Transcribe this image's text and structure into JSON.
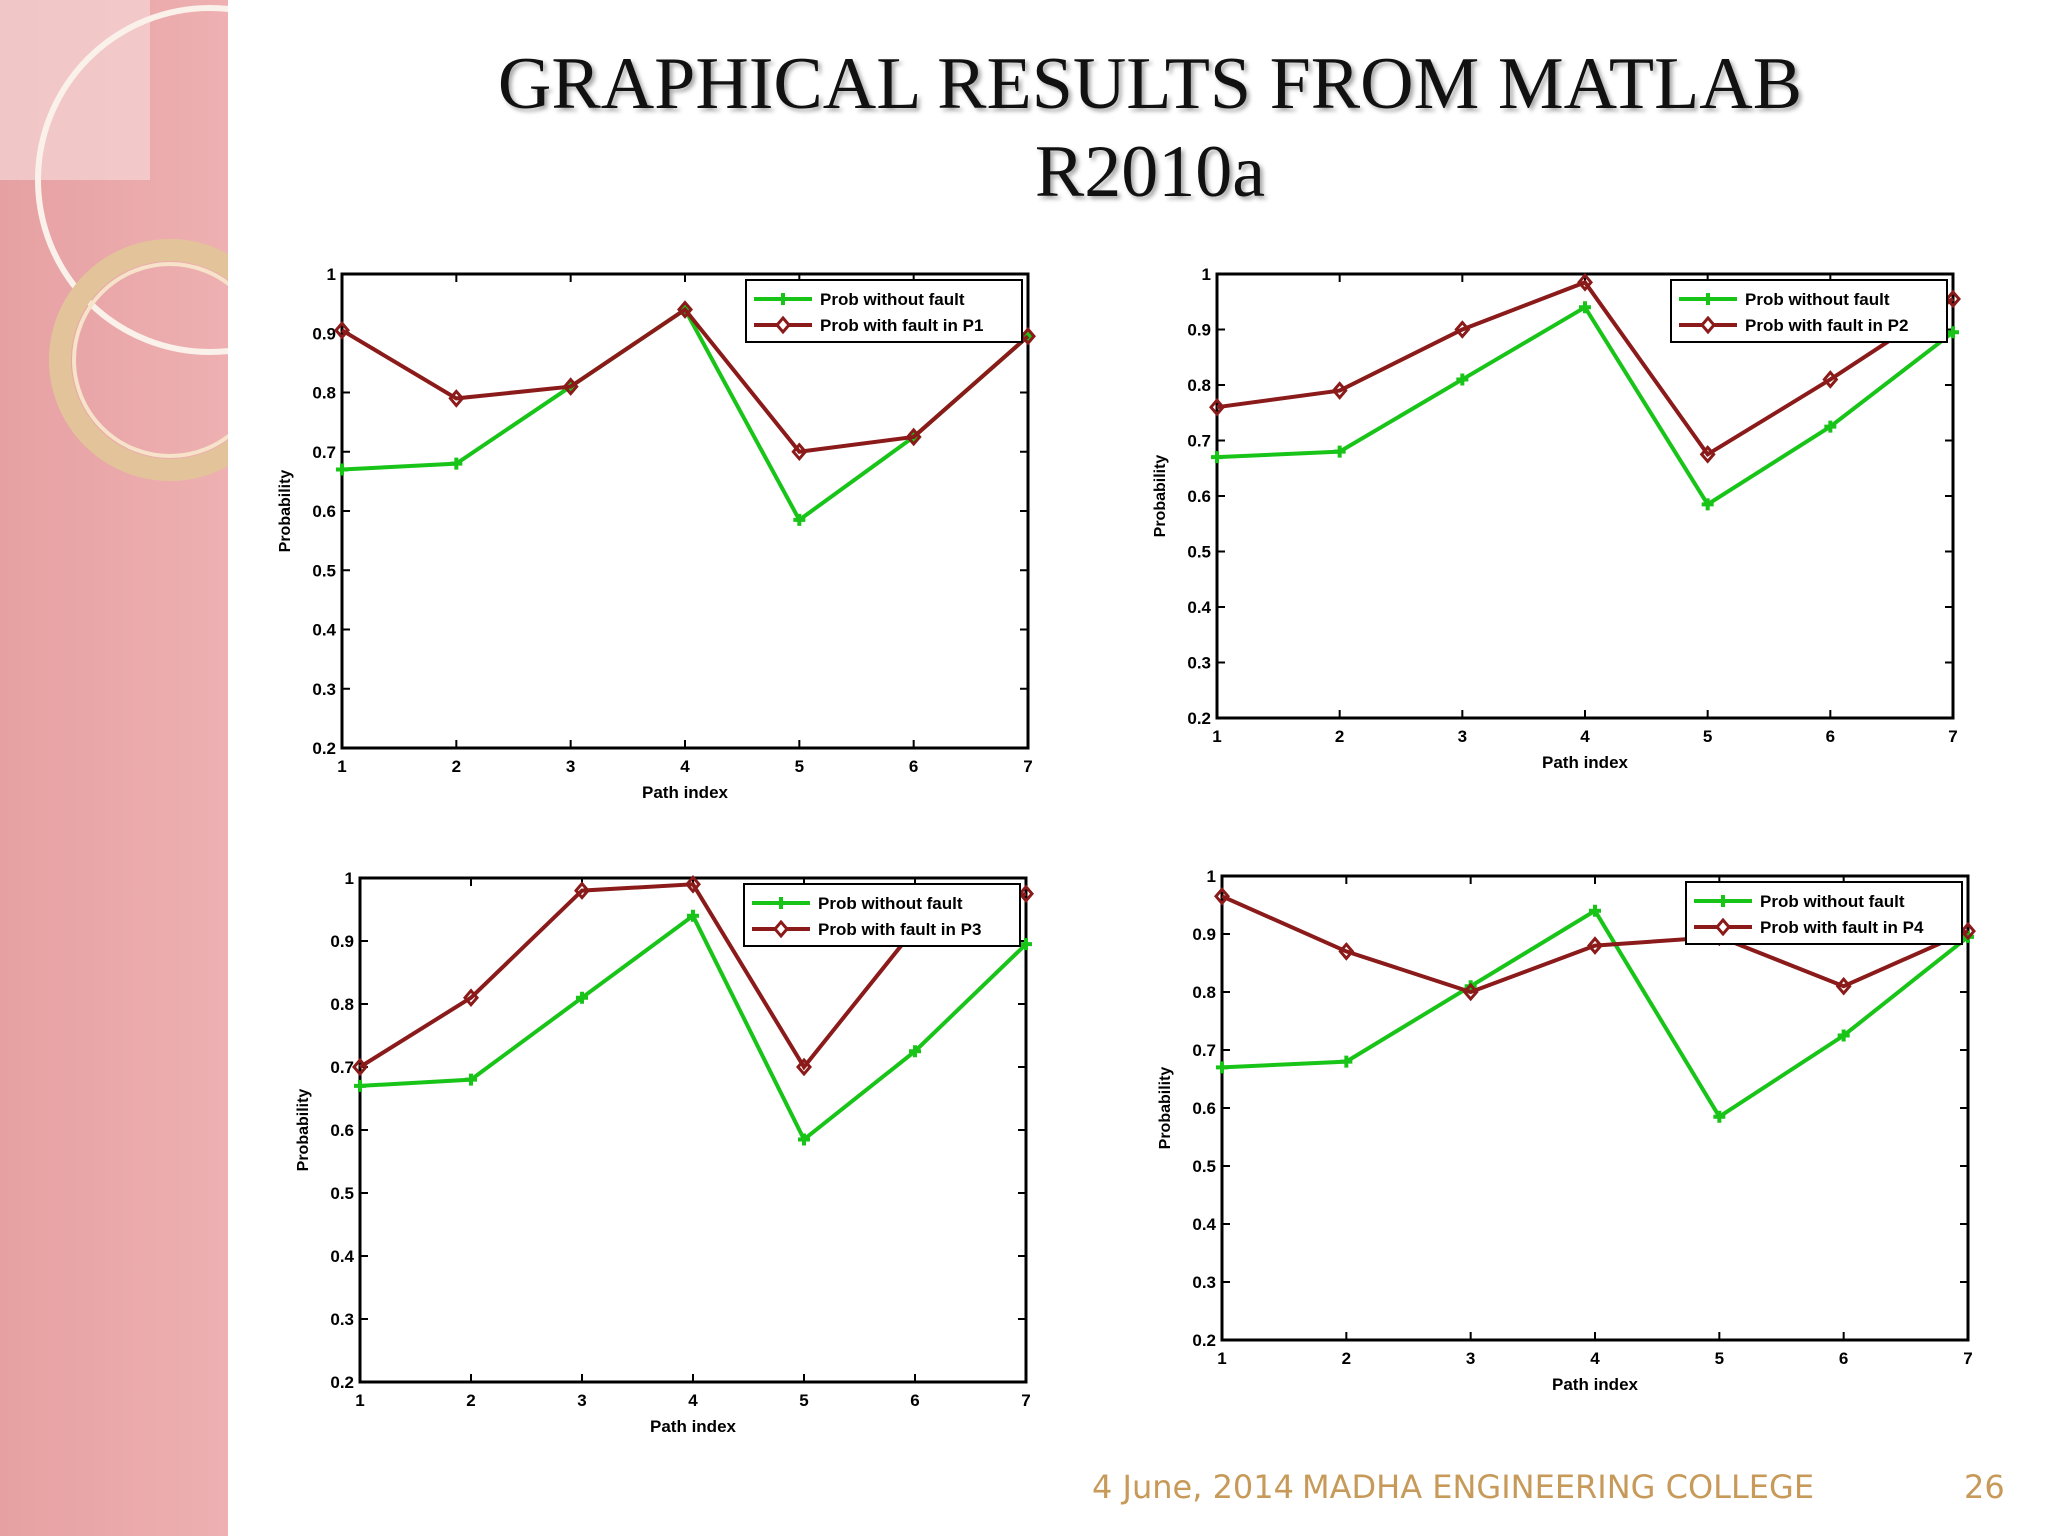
{
  "slide": {
    "title_line1": "GRAPHICAL RESULTS FROM MATLAB",
    "title_line2": "R2010a",
    "footer": {
      "date": "4 June, 2014",
      "institution": "MADHA ENGINEERING COLLEGE",
      "page_number": "26"
    }
  },
  "colors": {
    "sidebar": "#e8a6a8",
    "series_without_fault": "#19c419",
    "series_with_fault": "#8b1a1a",
    "footer_text": "#c79a5a",
    "ring": "#e8c9a0"
  },
  "chart_data": [
    {
      "type": "line",
      "x": [
        1,
        2,
        3,
        4,
        5,
        6,
        7
      ],
      "xlim": [
        1,
        7
      ],
      "ylim": [
        0.2,
        1
      ],
      "xticks": [
        "1",
        "2",
        "3",
        "4",
        "5",
        "6",
        "7"
      ],
      "yticks": [
        "0.2",
        "0.3",
        "0.4",
        "0.5",
        "0.6",
        "0.7",
        "0.8",
        "0.9",
        "1"
      ],
      "xlabel": "Path index",
      "ylabel": "Probability",
      "legend_position": "top-right",
      "series": [
        {
          "name": "Prob without fault",
          "values": [
            0.67,
            0.68,
            0.81,
            0.94,
            0.585,
            0.725,
            0.895
          ]
        },
        {
          "name": "Prob with fault in P1",
          "values": [
            0.905,
            0.79,
            0.81,
            0.94,
            0.7,
            0.725,
            0.895
          ]
        }
      ]
    },
    {
      "type": "line",
      "x": [
        1,
        2,
        3,
        4,
        5,
        6,
        7
      ],
      "xlim": [
        1,
        7
      ],
      "ylim": [
        0.2,
        1
      ],
      "xticks": [
        "1",
        "2",
        "3",
        "4",
        "5",
        "6",
        "7"
      ],
      "yticks": [
        "0.2",
        "0.3",
        "0.4",
        "0.5",
        "0.6",
        "0.7",
        "0.8",
        "0.9",
        "1"
      ],
      "xlabel": "Path index",
      "ylabel": "Probability",
      "legend_position": "top-right",
      "series": [
        {
          "name": "Prob without fault",
          "values": [
            0.67,
            0.68,
            0.81,
            0.94,
            0.585,
            0.725,
            0.895
          ]
        },
        {
          "name": "Prob with fault in P2",
          "values": [
            0.76,
            0.79,
            0.9,
            0.985,
            0.675,
            0.81,
            0.955
          ]
        }
      ]
    },
    {
      "type": "line",
      "x": [
        1,
        2,
        3,
        4,
        5,
        6,
        7
      ],
      "xlim": [
        1,
        7
      ],
      "ylim": [
        0.2,
        1
      ],
      "xticks": [
        "1",
        "2",
        "3",
        "4",
        "5",
        "6",
        "7"
      ],
      "yticks": [
        "0.2",
        "0.3",
        "0.4",
        "0.5",
        "0.6",
        "0.7",
        "0.8",
        "0.9",
        "1"
      ],
      "xlabel": "Path index",
      "ylabel": "Probability",
      "legend_position": "top-right",
      "series": [
        {
          "name": "Prob without fault",
          "values": [
            0.67,
            0.68,
            0.81,
            0.94,
            0.585,
            0.725,
            0.895
          ]
        },
        {
          "name": "Prob with fault in P3",
          "values": [
            0.7,
            0.81,
            0.98,
            0.99,
            0.7,
            0.92,
            0.975
          ]
        }
      ]
    },
    {
      "type": "line",
      "x": [
        1,
        2,
        3,
        4,
        5,
        6,
        7
      ],
      "xlim": [
        1,
        7
      ],
      "ylim": [
        0.2,
        1
      ],
      "xticks": [
        "1",
        "2",
        "3",
        "4",
        "5",
        "6",
        "7"
      ],
      "yticks": [
        "0.2",
        "0.3",
        "0.4",
        "0.5",
        "0.6",
        "0.7",
        "0.8",
        "0.9",
        "1"
      ],
      "xlabel": "Path index",
      "ylabel": "Probability",
      "legend_position": "top-right",
      "series": [
        {
          "name": "Prob without fault",
          "values": [
            0.67,
            0.68,
            0.81,
            0.94,
            0.585,
            0.725,
            0.895
          ]
        },
        {
          "name": "Prob with fault in P4",
          "values": [
            0.965,
            0.87,
            0.8,
            0.88,
            0.895,
            0.81,
            0.905
          ]
        }
      ]
    }
  ]
}
